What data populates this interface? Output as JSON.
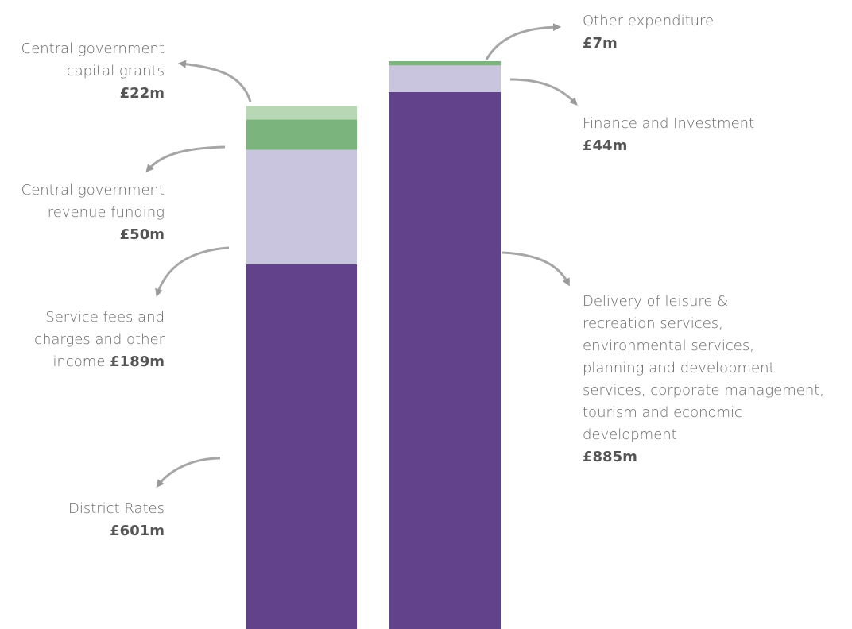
{
  "chart_data": {
    "type": "bar",
    "stacked": true,
    "categories": [
      null,
      null
    ],
    "series": [
      {
        "name": "District Rates",
        "color": "#62428a",
        "values": [
          601,
          null
        ],
        "value_labels": [
          "£601m",
          null
        ]
      },
      {
        "name": "Service fees and\ncharges and other\nincome",
        "color": "#c9c5de",
        "values": [
          189,
          null
        ],
        "value_labels": [
          "£189m",
          null
        ]
      },
      {
        "name": "Central government\nrevenue funding",
        "color": "#7cb47e",
        "values": [
          50,
          null
        ],
        "value_labels": [
          "£50m",
          null
        ]
      },
      {
        "name": "Central government\ncapital grants",
        "color": "#b8d7b5",
        "values": [
          22,
          null
        ],
        "value_labels": [
          "£22m",
          null
        ]
      },
      {
        "name": "Delivery of leisure &\nrecreation services,\nenvironmental services,\nplanning and development\nservices, corporate management,\ntourism and economic\ndevelopment",
        "color": "#62428a",
        "values": [
          null,
          885
        ],
        "value_labels": [
          null,
          "£885m"
        ]
      },
      {
        "name": "Finance and Investment",
        "color": "#c9c5de",
        "values": [
          null,
          44
        ],
        "value_labels": [
          null,
          "£44m"
        ]
      },
      {
        "name": "Other expenditure",
        "color": "#7cb47e",
        "values": [
          null,
          7
        ],
        "value_labels": [
          null,
          "£7m"
        ]
      }
    ]
  }
}
